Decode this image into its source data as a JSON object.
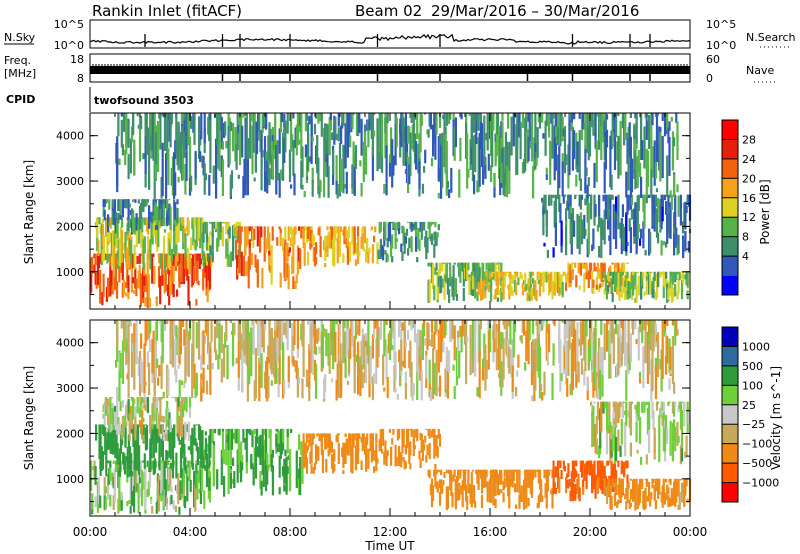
{
  "header": {
    "station": "Rankin Inlet (fitACF)",
    "beam": "Beam 02",
    "date_range": "29/Mar/2016 – 30/Mar/2016"
  },
  "nsky_panel": {
    "left_label": "N.Sky",
    "left_ticks": [
      "10^5",
      "10^0"
    ],
    "right_label": "N.Search",
    "right_ticks": [
      "10^5",
      "10^0"
    ]
  },
  "freq_panel": {
    "left_label_1": "Freq.",
    "left_label_2": "[MHz]",
    "left_ticks": [
      "18",
      "8"
    ],
    "right_label": "Nave",
    "right_ticks": [
      "60",
      "0"
    ]
  },
  "cpid": {
    "label": "CPID",
    "value": "twofsound 3503"
  },
  "colors": {
    "power_scale": [
      "#0000ff",
      "#2f58b8",
      "#3c8f6a",
      "#56b34a",
      "#ddd222",
      "#f4a21b",
      "#f0640f",
      "#e81e0a",
      "#ff0000"
    ],
    "velocity_scale": [
      "#ff0000",
      "#ff5a00",
      "#f08a17",
      "#c8a85a",
      "#c8c8c8",
      "#6fcf3a",
      "#2f9c3c",
      "#2c6aa0",
      "#0000b8"
    ]
  },
  "chart_data": [
    {
      "type": "heatmap",
      "name": "power",
      "xlabel": "",
      "ylabel": "Slant Range [km]",
      "x_range_hours": [
        0,
        24
      ],
      "ylim": [
        180,
        4500
      ],
      "yticks": [
        "4000",
        "3000",
        "2000",
        "1000"
      ],
      "colorbar": {
        "label": "Power [dB]",
        "ticks": [
          "28",
          "24",
          "20",
          "16",
          "12",
          "8",
          "4"
        ],
        "range": [
          0,
          32
        ]
      },
      "blobs": [
        {
          "t0": 0.0,
          "t1": 4.8,
          "r0": 200,
          "r1": 1400,
          "value": 27
        },
        {
          "t0": 0.2,
          "t1": 4.5,
          "r0": 1000,
          "r1": 2200,
          "value": 17
        },
        {
          "t0": 0.5,
          "t1": 3.5,
          "r0": 1800,
          "r1": 2600,
          "value": 9
        },
        {
          "t0": 4.5,
          "t1": 6.0,
          "r0": 1100,
          "r1": 2100,
          "value": 14
        },
        {
          "t0": 5.8,
          "t1": 8.5,
          "r0": 600,
          "r1": 2000,
          "value": 24
        },
        {
          "t0": 8.5,
          "t1": 11.5,
          "r0": 1100,
          "r1": 2000,
          "value": 21
        },
        {
          "t0": 11.5,
          "t1": 14.0,
          "r0": 1200,
          "r1": 2100,
          "value": 11
        },
        {
          "t0": 13.5,
          "t1": 16.5,
          "r0": 300,
          "r1": 1200,
          "value": 13
        },
        {
          "t0": 15.5,
          "t1": 19.0,
          "r0": 350,
          "r1": 1000,
          "value": 19
        },
        {
          "t0": 19.0,
          "t1": 21.5,
          "r0": 500,
          "r1": 1200,
          "value": 22
        },
        {
          "t0": 20.5,
          "t1": 24.0,
          "r0": 300,
          "r1": 1000,
          "value": 15
        },
        {
          "t0": 18.0,
          "t1": 24.0,
          "r0": 1300,
          "r1": 2700,
          "value": 8
        },
        {
          "t0": 1.0,
          "t1": 23.5,
          "r0": 2600,
          "r1": 4500,
          "value": 10
        }
      ]
    },
    {
      "type": "heatmap",
      "name": "velocity",
      "xlabel": "Time UT",
      "ylabel": "Slant Range [km]",
      "x_range_hours": [
        0,
        24
      ],
      "ylim": [
        180,
        4500
      ],
      "xticks": [
        "00:00",
        "04:00",
        "08:00",
        "12:00",
        "16:00",
        "20:00",
        "00:00"
      ],
      "yticks": [
        "4000",
        "3000",
        "2000",
        "1000"
      ],
      "colorbar": {
        "label": "Velocity [m s^-1]",
        "ticks": [
          "1000",
          "500",
          "100",
          "25",
          "−25",
          "−100",
          "−500",
          "−1000"
        ]
      },
      "blobs": [
        {
          "t0": 0.0,
          "t1": 4.8,
          "r0": 200,
          "r1": 1400,
          "value": 60
        },
        {
          "t0": 0.2,
          "t1": 4.5,
          "r0": 1000,
          "r1": 2200,
          "value": 300
        },
        {
          "t0": 0.5,
          "t1": 4.0,
          "r0": 1800,
          "r1": 2800,
          "value": 0
        },
        {
          "t0": 4.5,
          "t1": 8.5,
          "r0": 600,
          "r1": 2100,
          "value": 150
        },
        {
          "t0": 8.5,
          "t1": 11.5,
          "r0": 1100,
          "r1": 2000,
          "value": -250
        },
        {
          "t0": 11.5,
          "t1": 14.0,
          "r0": 1200,
          "r1": 2100,
          "value": -300
        },
        {
          "t0": 13.5,
          "t1": 18.5,
          "r0": 300,
          "r1": 1200,
          "value": -250
        },
        {
          "t0": 18.5,
          "t1": 21.5,
          "r0": 500,
          "r1": 1400,
          "value": -600
        },
        {
          "t0": 20.5,
          "t1": 24.0,
          "r0": 300,
          "r1": 1000,
          "value": -200
        },
        {
          "t0": 20.0,
          "t1": 24.0,
          "r0": 1300,
          "r1": 2700,
          "value": 5
        },
        {
          "t0": 1.0,
          "t1": 23.5,
          "r0": 2700,
          "r1": 4500,
          "value": -40
        }
      ]
    }
  ]
}
